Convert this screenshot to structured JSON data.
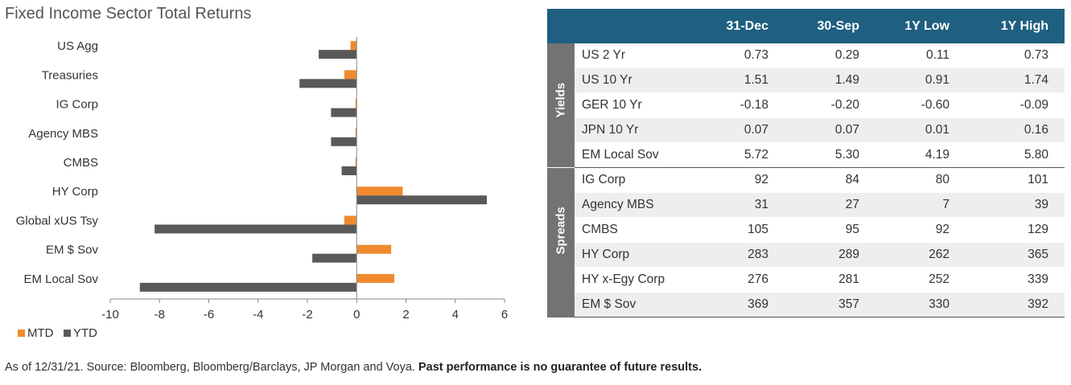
{
  "chart_data": {
    "type": "bar",
    "orientation": "horizontal",
    "title": "Fixed Income Sector Total Returns",
    "categories": [
      "US Agg",
      "Treasuries",
      "IG Corp",
      "Agency MBS",
      "CMBS",
      "HY Corp",
      "Global xUS Tsy",
      "EM $ Sov",
      "EM Local Sov"
    ],
    "series": [
      {
        "name": "MTD",
        "values": [
          -0.25,
          -0.5,
          -0.05,
          -0.05,
          -0.05,
          1.87,
          -0.5,
          1.4,
          1.53
        ],
        "color": "#f08a2e"
      },
      {
        "name": "YTD",
        "values": [
          -1.54,
          -2.32,
          -1.04,
          -1.04,
          -0.61,
          5.28,
          -8.2,
          -1.8,
          -8.8
        ],
        "color": "#595959"
      }
    ],
    "xlim": [
      -10,
      6
    ],
    "x_ticks": [
      "-10",
      "-8",
      "-6",
      "-4",
      "-2",
      "0",
      "2",
      "4",
      "6"
    ],
    "grid": false,
    "legend_position": "bottom-left"
  },
  "table": {
    "headers": [
      "",
      "",
      "31-Dec",
      "30-Sep",
      "1Y Low",
      "1Y High"
    ],
    "sections": [
      {
        "label": "Yields",
        "rows": [
          {
            "name": "US 2 Yr",
            "values": [
              "0.73",
              "0.29",
              "0.11",
              "0.73"
            ]
          },
          {
            "name": "US 10 Yr",
            "values": [
              "1.51",
              "1.49",
              "0.91",
              "1.74"
            ]
          },
          {
            "name": "GER 10 Yr",
            "values": [
              "-0.18",
              "-0.20",
              "-0.60",
              "-0.09"
            ]
          },
          {
            "name": "JPN 10 Yr",
            "values": [
              "0.07",
              "0.07",
              "0.01",
              "0.16"
            ]
          },
          {
            "name": "EM Local Sov",
            "values": [
              "5.72",
              "5.30",
              "4.19",
              "5.80"
            ]
          }
        ]
      },
      {
        "label": "Spreads",
        "rows": [
          {
            "name": "IG Corp",
            "values": [
              "92",
              "84",
              "80",
              "101"
            ]
          },
          {
            "name": "Agency MBS",
            "values": [
              "31",
              "27",
              "7",
              "39"
            ]
          },
          {
            "name": "CMBS",
            "values": [
              "105",
              "95",
              "92",
              "129"
            ]
          },
          {
            "name": "HY Corp",
            "values": [
              "283",
              "289",
              "262",
              "365"
            ]
          },
          {
            "name": "HY x-Egy Corp",
            "values": [
              "276",
              "281",
              "252",
              "339"
            ]
          },
          {
            "name": "EM $ Sov",
            "values": [
              "369",
              "357",
              "330",
              "392"
            ]
          }
        ]
      }
    ],
    "header_color": "#1f5f80",
    "section_color": "#737373"
  },
  "footnote": {
    "text": "As of 12/31/21. Source: Bloomberg, Bloomberg/Barclays, JP Morgan and Voya. ",
    "bold": "Past performance is no guarantee of future results."
  }
}
